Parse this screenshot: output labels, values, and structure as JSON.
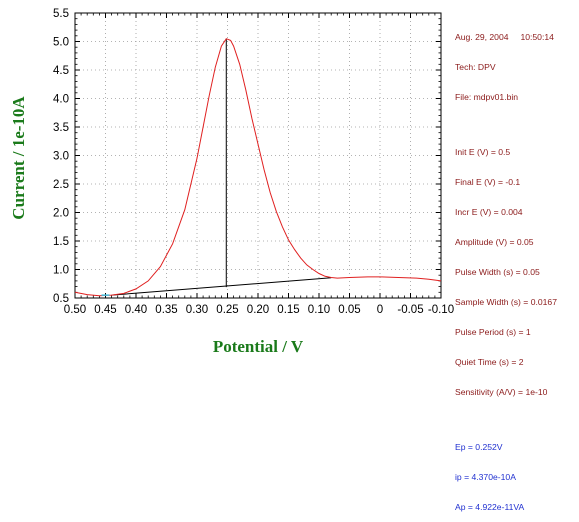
{
  "chart_data": {
    "type": "line",
    "xlabel": "Potential / V",
    "ylabel": "Current / 1e-10A",
    "xlim": [
      0.5,
      -0.1
    ],
    "ylim": [
      0.5,
      5.5
    ],
    "x_reversed": true,
    "grid": true,
    "x_ticks": [
      "0.50",
      "0.45",
      "0.40",
      "0.35",
      "0.30",
      "0.25",
      "0.20",
      "0.15",
      "0.10",
      "0.05",
      "0",
      "-0.05",
      "-0.10"
    ],
    "x_tick_values": [
      0.5,
      0.45,
      0.4,
      0.35,
      0.3,
      0.25,
      0.2,
      0.15,
      0.1,
      0.05,
      0,
      -0.05,
      -0.1
    ],
    "y_ticks": [
      "0.5",
      "1.0",
      "1.5",
      "2.0",
      "2.5",
      "3.0",
      "3.5",
      "4.0",
      "4.5",
      "5.0",
      "5.5"
    ],
    "y_tick_values": [
      0.5,
      1.0,
      1.5,
      2.0,
      2.5,
      3.0,
      3.5,
      4.0,
      4.5,
      5.0,
      5.5
    ],
    "series": [
      {
        "color": "#e02020",
        "x": [
          0.5,
          0.48,
          0.46,
          0.44,
          0.42,
          0.4,
          0.38,
          0.36,
          0.34,
          0.32,
          0.3,
          0.29,
          0.28,
          0.27,
          0.26,
          0.252,
          0.245,
          0.24,
          0.23,
          0.22,
          0.21,
          0.2,
          0.19,
          0.18,
          0.17,
          0.16,
          0.15,
          0.14,
          0.13,
          0.12,
          0.11,
          0.1,
          0.09,
          0.08,
          0.07,
          0.05,
          0.02,
          0,
          -0.03,
          -0.06,
          -0.08,
          -0.1
        ],
        "y": [
          0.6,
          0.56,
          0.54,
          0.55,
          0.58,
          0.66,
          0.8,
          1.05,
          1.45,
          2.05,
          2.95,
          3.5,
          4.05,
          4.55,
          4.92,
          5.05,
          5.02,
          4.92,
          4.6,
          4.15,
          3.65,
          3.2,
          2.75,
          2.35,
          2.02,
          1.75,
          1.52,
          1.35,
          1.2,
          1.08,
          1.0,
          0.93,
          0.88,
          0.86,
          0.85,
          0.86,
          0.87,
          0.87,
          0.86,
          0.85,
          0.83,
          0.8
        ]
      }
    ],
    "baseline": {
      "color": "#000000",
      "x": [
        0.44,
        0.08
      ],
      "y": [
        0.55,
        0.855
      ]
    },
    "peak_line": {
      "color": "#000000",
      "x": 0.252,
      "y_from": 0.69,
      "y_to": 5.05
    },
    "marker": {
      "color": "#40c0e0",
      "x": 0.45,
      "y": 0.55
    }
  },
  "info": {
    "date_line": "Aug. 29, 2004     10:50:14",
    "tech": "Tech: DPV",
    "file": "File: mdpv01.bin",
    "params": [
      "Init E (V) = 0.5",
      "Final E (V) = -0.1",
      "Incr E (V) = 0.004",
      "Amplitude (V) = 0.05",
      "Pulse Width (s) = 0.05",
      "Sample Width (s) = 0.0167",
      "Pulse Period (s) = 1",
      "Quiet Time (s) = 2",
      "Sensitivity (A/V) = 1e-10"
    ],
    "results": [
      "Ep = 0.252V",
      "ip = 4.370e-10A",
      "Ap = 4.922e-11VA"
    ],
    "colors": {
      "header": "#8b1a1a",
      "results": "#2030d0"
    }
  }
}
